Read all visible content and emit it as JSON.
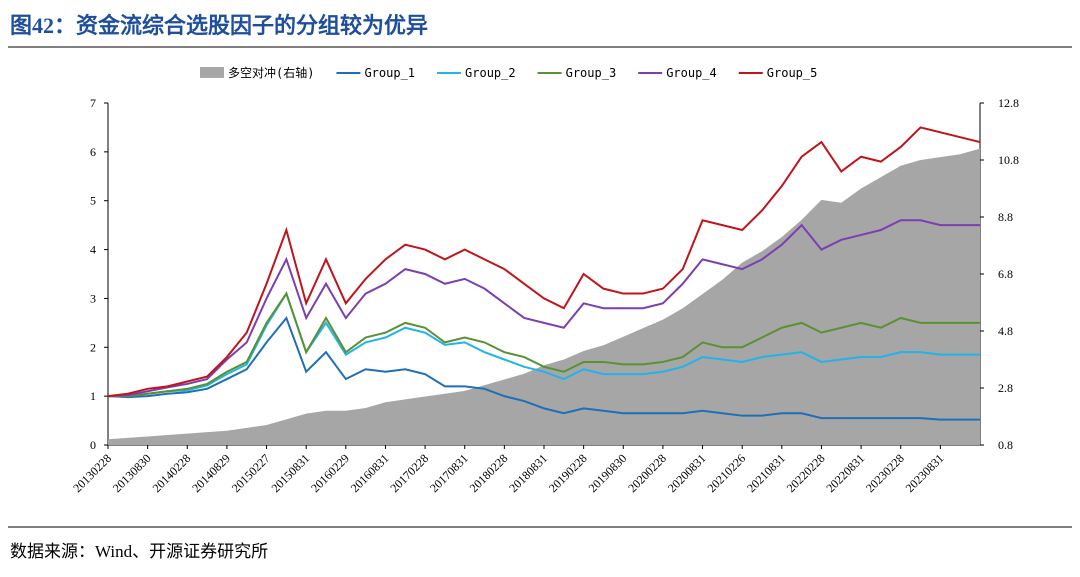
{
  "header": {
    "title": "图42：资金流综合选股因子的分组较为优异"
  },
  "footer": {
    "source": "数据来源：Wind、开源证券研究所"
  },
  "chart_data": {
    "type": "line",
    "categories": [
      "20130228",
      null,
      "20130830",
      null,
      "20140228",
      null,
      "20140829",
      null,
      "20150227",
      null,
      "20150831",
      null,
      "20160229",
      null,
      "20160831",
      null,
      "20170228",
      null,
      "20170831",
      null,
      "20180228",
      null,
      "20180831",
      null,
      "20190228",
      null,
      "20190830",
      null,
      "20200228",
      null,
      "20200831",
      null,
      "20210226",
      null,
      "20210831",
      null,
      "20220228",
      null,
      "20220831",
      null,
      "20230228",
      null,
      "20230831",
      null,
      null
    ],
    "ylim": [
      0,
      7
    ],
    "yticks": [
      0,
      1,
      2,
      3,
      4,
      5,
      6,
      7
    ],
    "y2lim": [
      0.8,
      12.8
    ],
    "y2ticks": [
      0.8,
      2.8,
      4.8,
      6.8,
      8.8,
      10.8,
      12.8
    ],
    "series": [
      {
        "name": "多空对冲(右轴)",
        "type": "area",
        "axis": "y2",
        "color": "#a6a6a6",
        "values": [
          1.0,
          1.05,
          1.1,
          1.15,
          1.2,
          1.25,
          1.3,
          1.4,
          1.5,
          1.7,
          1.9,
          2.0,
          2.0,
          2.1,
          2.3,
          2.4,
          2.5,
          2.6,
          2.7,
          2.9,
          3.1,
          3.3,
          3.6,
          3.8,
          4.1,
          4.3,
          4.6,
          4.9,
          5.2,
          5.6,
          6.1,
          6.6,
          7.2,
          7.6,
          8.1,
          8.7,
          9.4,
          9.3,
          9.8,
          10.2,
          10.6,
          10.8,
          10.9,
          11.0,
          11.2
        ]
      },
      {
        "name": "Group_1",
        "color": "#1f6fb8",
        "values": [
          1.0,
          0.98,
          1.0,
          1.05,
          1.08,
          1.15,
          1.35,
          1.55,
          2.1,
          2.6,
          1.5,
          1.9,
          1.35,
          1.55,
          1.5,
          1.55,
          1.45,
          1.2,
          1.2,
          1.15,
          1.0,
          0.9,
          0.75,
          0.65,
          0.75,
          0.7,
          0.65,
          0.65,
          0.65,
          0.65,
          0.7,
          0.65,
          0.6,
          0.6,
          0.65,
          0.65,
          0.55,
          0.55,
          0.55,
          0.55,
          0.55,
          0.55,
          0.52,
          0.52,
          0.52
        ]
      },
      {
        "name": "Group_2",
        "color": "#1fb4ea",
        "values": [
          1.0,
          1.0,
          1.05,
          1.1,
          1.12,
          1.22,
          1.45,
          1.65,
          2.45,
          3.1,
          1.9,
          2.5,
          1.85,
          2.1,
          2.2,
          2.4,
          2.3,
          2.05,
          2.1,
          1.9,
          1.75,
          1.6,
          1.5,
          1.35,
          1.55,
          1.45,
          1.45,
          1.45,
          1.5,
          1.6,
          1.8,
          1.75,
          1.7,
          1.8,
          1.85,
          1.9,
          1.7,
          1.75,
          1.8,
          1.8,
          1.9,
          1.9,
          1.85,
          1.85,
          1.85
        ]
      },
      {
        "name": "Group_3",
        "color": "#5a9132",
        "values": [
          1.0,
          1.0,
          1.05,
          1.1,
          1.15,
          1.25,
          1.5,
          1.7,
          2.5,
          3.1,
          1.9,
          2.6,
          1.9,
          2.2,
          2.3,
          2.5,
          2.4,
          2.1,
          2.2,
          2.1,
          1.9,
          1.8,
          1.6,
          1.5,
          1.7,
          1.7,
          1.65,
          1.65,
          1.7,
          1.8,
          2.1,
          2.0,
          2.0,
          2.2,
          2.4,
          2.5,
          2.3,
          2.4,
          2.5,
          2.4,
          2.6,
          2.5,
          2.5,
          2.5,
          2.5
        ]
      },
      {
        "name": "Group_4",
        "color": "#7b3fb0",
        "values": [
          1.0,
          1.02,
          1.1,
          1.18,
          1.25,
          1.35,
          1.75,
          2.1,
          3.0,
          3.8,
          2.6,
          3.3,
          2.6,
          3.1,
          3.3,
          3.6,
          3.5,
          3.3,
          3.4,
          3.2,
          2.9,
          2.6,
          2.5,
          2.4,
          2.9,
          2.8,
          2.8,
          2.8,
          2.9,
          3.3,
          3.8,
          3.7,
          3.6,
          3.8,
          4.1,
          4.5,
          4.0,
          4.2,
          4.3,
          4.4,
          4.6,
          4.6,
          4.5,
          4.5,
          4.5
        ]
      },
      {
        "name": "Group_5",
        "color": "#c0141b",
        "values": [
          1.0,
          1.05,
          1.15,
          1.2,
          1.3,
          1.4,
          1.8,
          2.3,
          3.3,
          4.4,
          2.9,
          3.8,
          2.9,
          3.4,
          3.8,
          4.1,
          4.0,
          3.8,
          4.0,
          3.8,
          3.6,
          3.3,
          3.0,
          2.8,
          3.5,
          3.2,
          3.1,
          3.1,
          3.2,
          3.6,
          4.6,
          4.5,
          4.4,
          4.8,
          5.3,
          5.9,
          6.2,
          5.6,
          5.9,
          5.8,
          6.1,
          6.5,
          6.4,
          6.3,
          6.2
        ]
      }
    ]
  }
}
